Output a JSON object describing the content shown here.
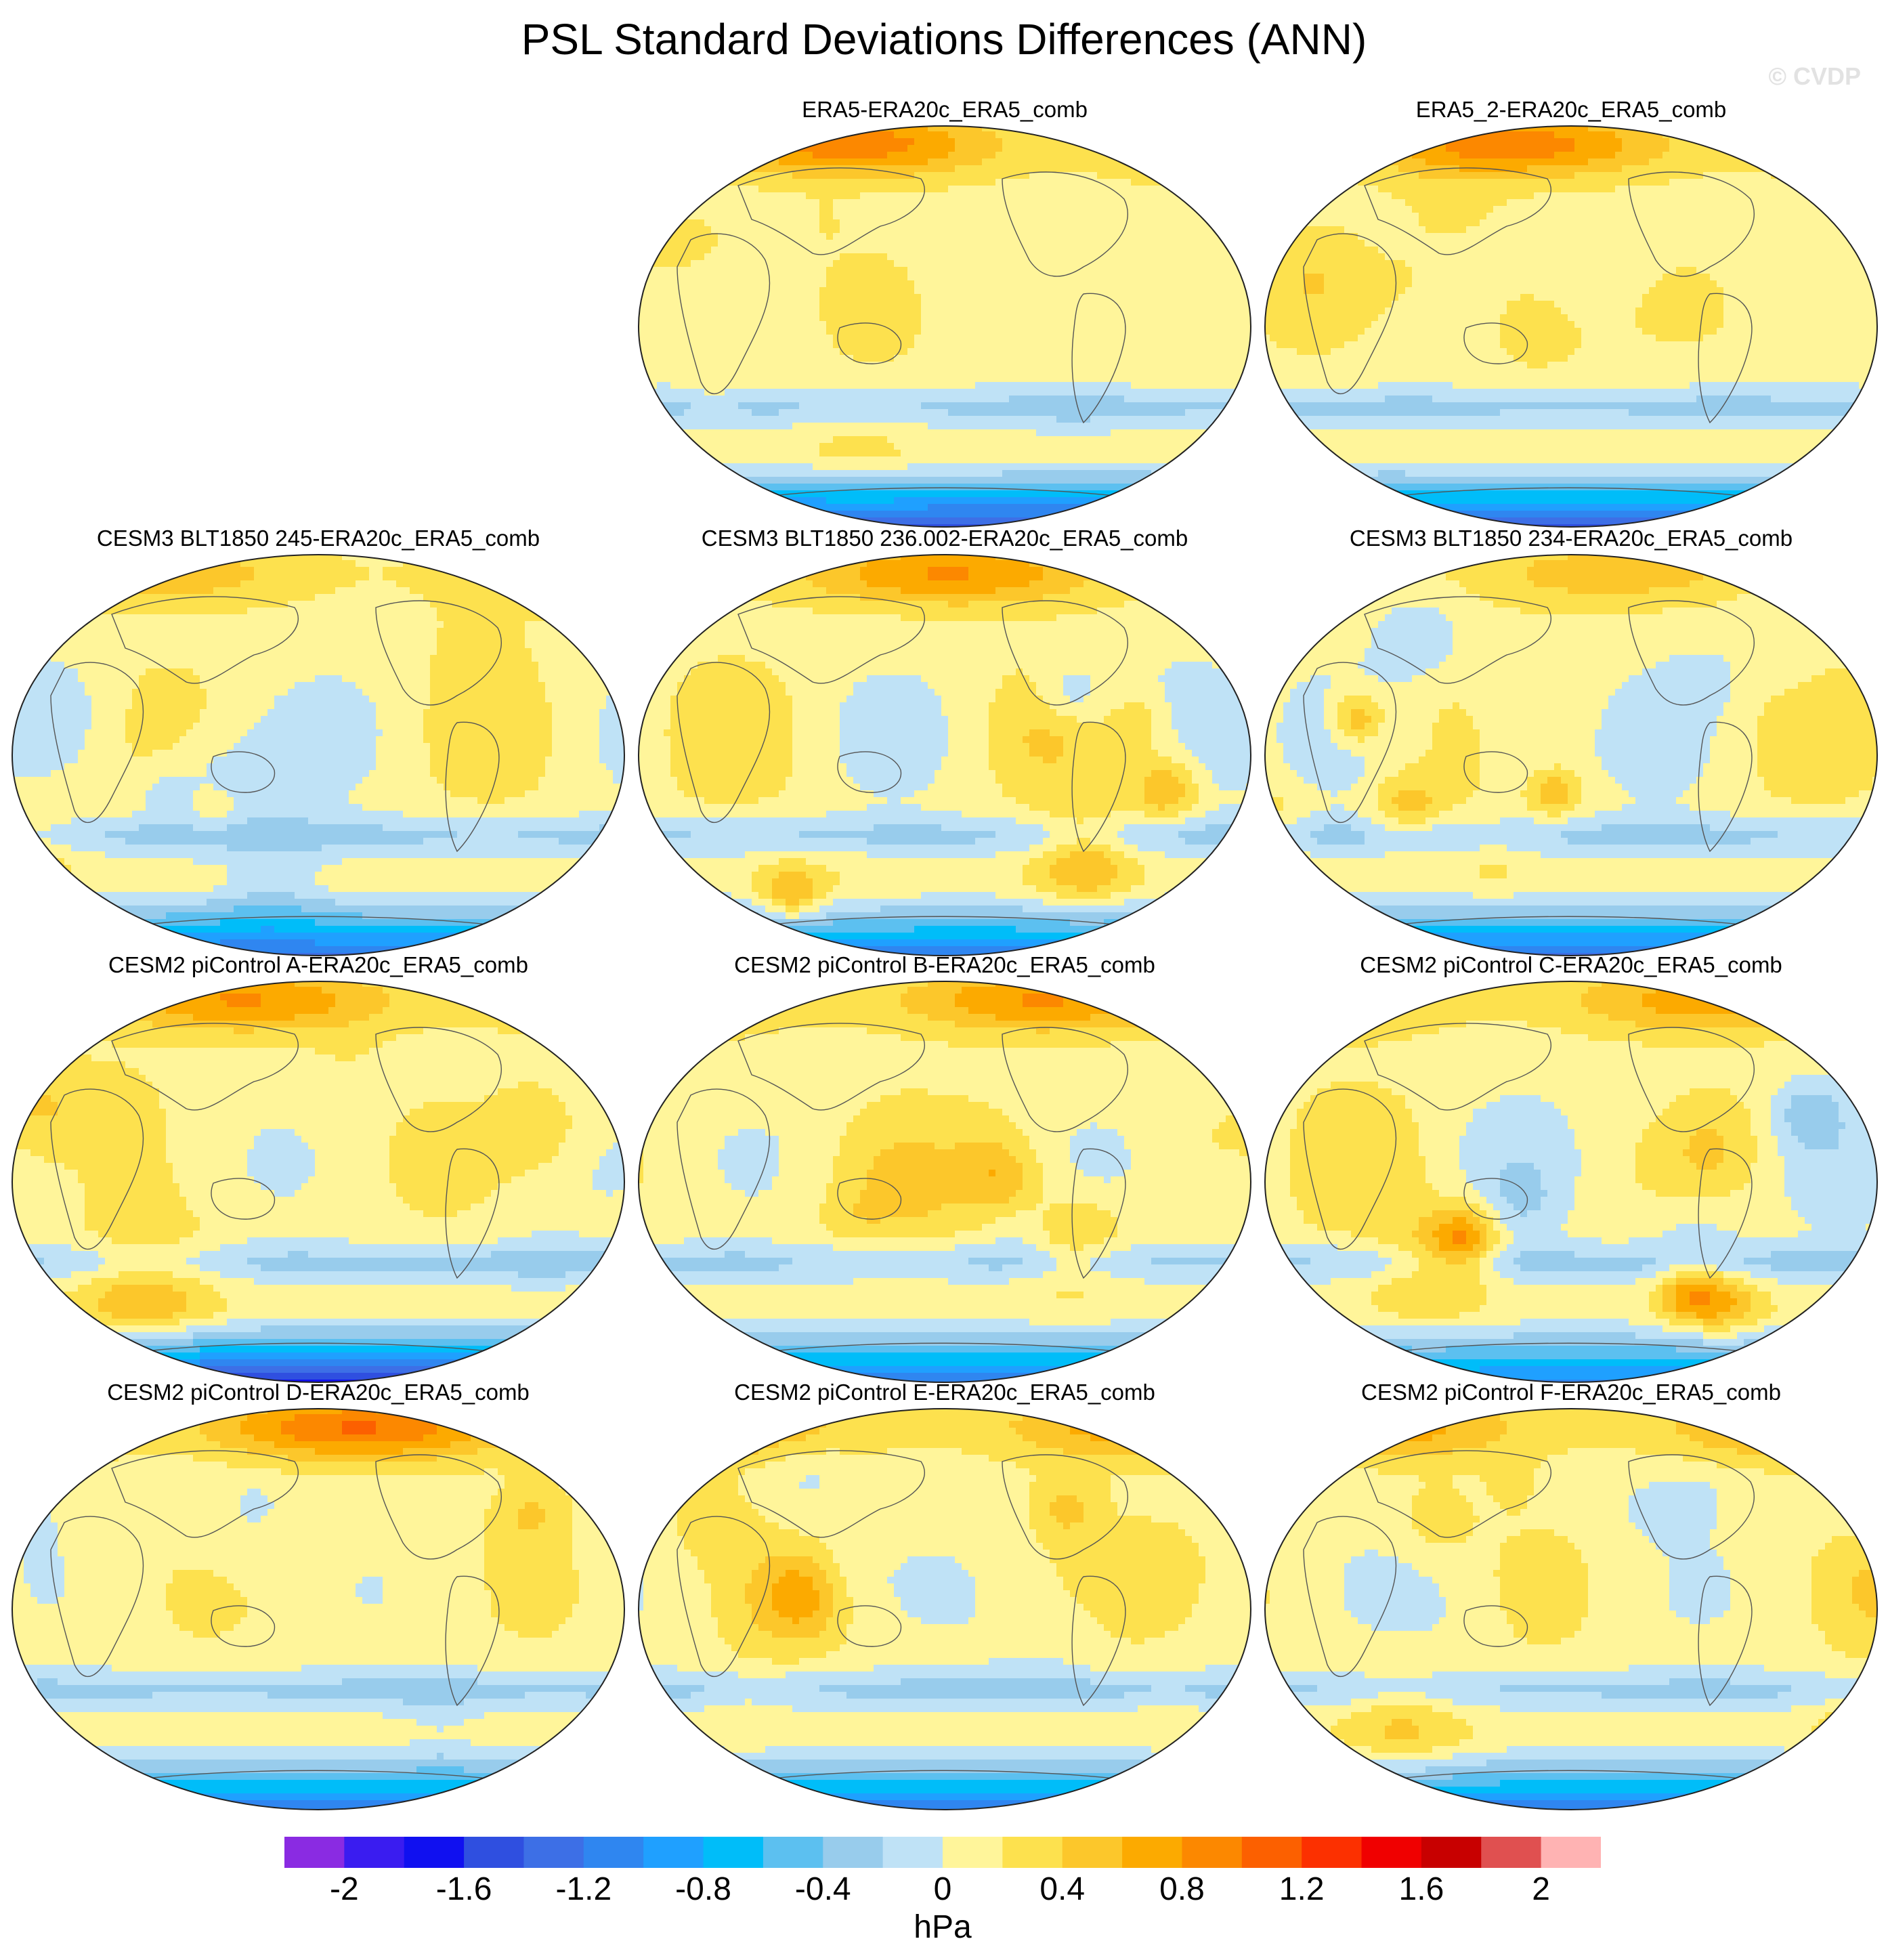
{
  "title": "PSL Standard Deviations Differences (ANN)",
  "watermark": "© CVDP",
  "panels": [
    {
      "title": "ERA5-ERA20c_ERA5_comb",
      "seed": 11,
      "warm": 0.15,
      "south": -1.7,
      "arctic": 0.8
    },
    {
      "title": "ERA5_2-ERA20c_ERA5_comb",
      "seed": 23,
      "warm": 0.2,
      "south": -1.6,
      "arctic": 0.8
    },
    {
      "title": "CESM3 BLT1850 245-ERA20c_ERA5_comb",
      "seed": 37,
      "warm": 0.45,
      "south": -1.4,
      "arctic": 0.4
    },
    {
      "title": "CESM3 BLT1850 236.002-ERA20c_ERA5_comb",
      "seed": 41,
      "warm": 0.5,
      "south": -1.3,
      "arctic": 0.7
    },
    {
      "title": "CESM3 BLT1850 234-ERA20c_ERA5_comb",
      "seed": 53,
      "warm": 0.5,
      "south": -1.4,
      "arctic": 0.4
    },
    {
      "title": "CESM2 piControl A-ERA20c_ERA5_comb",
      "seed": 61,
      "warm": 0.3,
      "south": -1.8,
      "arctic": 0.7
    },
    {
      "title": "CESM2 piControl B-ERA20c_ERA5_comb",
      "seed": 71,
      "warm": 0.3,
      "south": -1.3,
      "arctic": 0.7
    },
    {
      "title": "CESM2 piControl C-ERA20c_ERA5_comb",
      "seed": 83,
      "warm": 0.55,
      "south": -1.2,
      "arctic": 0.6
    },
    {
      "title": "CESM2 piControl D-ERA20c_ERA5_comb",
      "seed": 97,
      "warm": 0.25,
      "south": -1.3,
      "arctic": 0.9
    },
    {
      "title": "CESM2 piControl E-ERA20c_ERA5_comb",
      "seed": 101,
      "warm": 0.3,
      "south": -1.3,
      "arctic": 0.6
    },
    {
      "title": "CESM2 piControl F-ERA20c_ERA5_comb",
      "seed": 113,
      "warm": 0.3,
      "south": -1.3,
      "arctic": 0.6
    }
  ],
  "colorbar": {
    "unit": "hPa",
    "tick_labels": [
      "-2",
      "-1.6",
      "-1.2",
      "-0.8",
      "-0.4",
      "0",
      "0.4",
      "0.8",
      "1.2",
      "1.6",
      "2"
    ],
    "tick_values": [
      -2,
      -1.6,
      -1.2,
      -0.8,
      -0.4,
      0,
      0.4,
      0.8,
      1.2,
      1.6,
      2
    ],
    "levels": [
      -2.2,
      -2.0,
      -1.8,
      -1.6,
      -1.4,
      -1.2,
      -1.0,
      -0.8,
      -0.6,
      -0.4,
      -0.2,
      0,
      0.2,
      0.4,
      0.6,
      0.8,
      1.0,
      1.2,
      1.4,
      1.6,
      1.8,
      2.0,
      2.2
    ],
    "colors": [
      "#8a2be2",
      "#3a1cf0",
      "#1010f0",
      "#2f4fe0",
      "#3d6fe6",
      "#2f86f0",
      "#1fa0ff",
      "#00bdf9",
      "#5cc0f0",
      "#98ccec",
      "#bfe2f6",
      "#fff59a",
      "#fde14e",
      "#fcc72b",
      "#fcaa00",
      "#fc8800",
      "#fc6000",
      "#fc3000",
      "#f00000",
      "#c80000",
      "#e05050",
      "#ffb3b3"
    ]
  }
}
